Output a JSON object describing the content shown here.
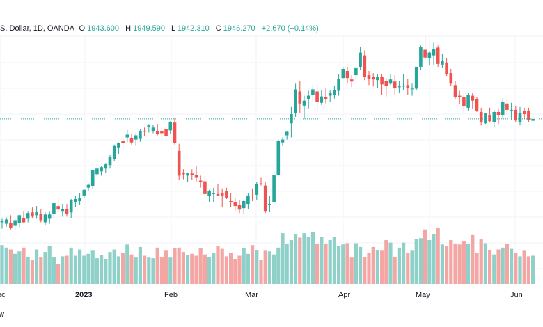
{
  "chart_data": {
    "type": "candlestick",
    "legend": {
      "symbol": ".S. Dollar, 1D, OANDA",
      "o_label": "O",
      "o_value": "1943.600",
      "h_label": "H",
      "h_value": "1949.590",
      "l_label": "L",
      "l_value": "1942.310",
      "c_label": "C",
      "c_value": "1946.270",
      "change": "+2.670 (+0.14%)"
    },
    "x_ticks": [
      "ec",
      "2023",
      "Feb",
      "Mar",
      "Apr",
      "May",
      "Jun"
    ],
    "footer_text": "w",
    "last_close_level": 1946.27,
    "grid": true,
    "colors": {
      "up": "#26a69a",
      "down": "#ef5350",
      "up_volume": "#8fd1c9",
      "down_volume": "#f4a6a4",
      "legend_value": "#26a69a",
      "grid": "#f0f3fa"
    },
    "price_range": [
      1770,
      2075
    ],
    "candles": [
      [
        1800.0,
        1805.0,
        1791.0,
        1802.0
      ],
      [
        1798.0,
        1807.0,
        1794.0,
        1804.0
      ],
      [
        1799.0,
        1810.0,
        1790.0,
        1792.0
      ],
      [
        1795.0,
        1806.0,
        1790.0,
        1803.0
      ],
      [
        1799.0,
        1812.0,
        1793.0,
        1810.0
      ],
      [
        1806.0,
        1816.0,
        1799.0,
        1800.0
      ],
      [
        1805.0,
        1816.0,
        1800.0,
        1813.0
      ],
      [
        1814.0,
        1821.0,
        1806.0,
        1808.0
      ],
      [
        1810.0,
        1823.0,
        1805.0,
        1815.0
      ],
      [
        1812.0,
        1819.0,
        1800.0,
        1803.0
      ],
      [
        1800.0,
        1814.0,
        1796.0,
        1811.0
      ],
      [
        1805.0,
        1816.0,
        1798.0,
        1811.0
      ],
      [
        1812.0,
        1828.0,
        1806.0,
        1827.0
      ],
      [
        1823.0,
        1834.0,
        1814.0,
        1818.0
      ],
      [
        1816.0,
        1826.0,
        1808.0,
        1819.0
      ],
      [
        1819.0,
        1826.0,
        1808.0,
        1812.0
      ],
      [
        1814.0,
        1833.0,
        1806.0,
        1832.0
      ],
      [
        1828.0,
        1837.0,
        1822.0,
        1833.0
      ],
      [
        1830.0,
        1841.0,
        1825.0,
        1834.0
      ],
      [
        1838.0,
        1847.0,
        1835.0,
        1846.0
      ],
      [
        1849.0,
        1855.0,
        1844.0,
        1853.0
      ],
      [
        1851.0,
        1874.0,
        1847.0,
        1874.0
      ],
      [
        1868.0,
        1879.0,
        1864.0,
        1876.0
      ],
      [
        1872.0,
        1880.0,
        1866.0,
        1878.0
      ],
      [
        1876.0,
        1883.0,
        1870.0,
        1882.0
      ],
      [
        1881.0,
        1895.0,
        1876.0,
        1892.0
      ],
      [
        1890.0,
        1910.0,
        1886.0,
        1908.0
      ],
      [
        1905.0,
        1913.0,
        1896.0,
        1912.0
      ],
      [
        1915.0,
        1921.0,
        1902.0,
        1912.0
      ],
      [
        1920.0,
        1931.0,
        1913.0,
        1924.0
      ],
      [
        1919.0,
        1925.0,
        1910.0,
        1913.0
      ],
      [
        1917.0,
        1926.0,
        1908.0,
        1923.0
      ],
      [
        1918.0,
        1932.0,
        1914.0,
        1929.0
      ],
      [
        1929.0,
        1934.0,
        1922.0,
        1928.0
      ],
      [
        1935.0,
        1939.0,
        1927.0,
        1937.0
      ],
      [
        1929.0,
        1938.0,
        1926.0,
        1934.0
      ],
      [
        1929.0,
        1939.0,
        1923.0,
        1925.0
      ],
      [
        1929.0,
        1934.0,
        1920.0,
        1926.0
      ],
      [
        1932.0,
        1935.0,
        1917.0,
        1922.0
      ],
      [
        1930.0,
        1943.0,
        1925.0,
        1942.0
      ],
      [
        1941.0,
        1948.0,
        1910.0,
        1912.0
      ],
      [
        1901.0,
        1911.0,
        1860.0,
        1866.0
      ],
      [
        1870.0,
        1875.0,
        1861.0,
        1868.0
      ],
      [
        1866.0,
        1870.0,
        1857.0,
        1870.0
      ],
      [
        1869.0,
        1875.0,
        1860.0,
        1867.0
      ],
      [
        1867.0,
        1880.0,
        1857.0,
        1863.0
      ],
      [
        1859.0,
        1866.0,
        1849.0,
        1857.0
      ],
      [
        1858.0,
        1865.0,
        1836.0,
        1840.0
      ],
      [
        1837.0,
        1846.0,
        1829.0,
        1844.0
      ],
      [
        1840.0,
        1849.0,
        1829.0,
        1841.0
      ],
      [
        1840.0,
        1854.0,
        1837.0,
        1838.0
      ],
      [
        1841.0,
        1848.0,
        1821.0,
        1838.0
      ],
      [
        1844.0,
        1849.0,
        1833.0,
        1835.0
      ],
      [
        1830.0,
        1841.0,
        1822.0,
        1829.0
      ],
      [
        1829.0,
        1834.0,
        1817.0,
        1823.0
      ],
      [
        1825.0,
        1831.0,
        1813.0,
        1818.0
      ],
      [
        1820.0,
        1832.0,
        1812.0,
        1830.0
      ],
      [
        1826.0,
        1841.0,
        1819.0,
        1838.0
      ],
      [
        1838.0,
        1848.0,
        1830.0,
        1837.0
      ],
      [
        1839.0,
        1857.0,
        1832.0,
        1854.0
      ],
      [
        1855.0,
        1863.0,
        1852.0,
        1854.0
      ],
      [
        1852.0,
        1857.0,
        1813.0,
        1816.0
      ],
      [
        1826.0,
        1837.0,
        1815.0,
        1826.0
      ],
      [
        1829.0,
        1872.0,
        1828.0,
        1867.0
      ],
      [
        1867.0,
        1917.0,
        1866.0,
        1915.0
      ],
      [
        1913.0,
        1920.0,
        1908.0,
        1917.0
      ],
      [
        1923.0,
        1929.0,
        1917.0,
        1928.0
      ],
      [
        1940.0,
        1963.0,
        1920.0,
        1953.0
      ],
      [
        1955.0,
        1996.0,
        1949.0,
        1988.0
      ],
      [
        1985.0,
        2000.0,
        1954.0,
        1968.0
      ],
      [
        1965.0,
        1979.0,
        1946.0,
        1972.0
      ],
      [
        1974.0,
        1986.0,
        1961.0,
        1979.0
      ],
      [
        1980.0,
        1995.0,
        1971.0,
        1988.0
      ],
      [
        1985.0,
        1992.0,
        1958.0,
        1970.0
      ],
      [
        1969.0,
        1987.0,
        1966.0,
        1978.0
      ],
      [
        1977.0,
        1989.0,
        1968.0,
        1974.0
      ],
      [
        1979.0,
        1987.0,
        1970.0,
        1983.0
      ],
      [
        1980.0,
        1993.0,
        1975.0,
        1987.0
      ],
      [
        1986.0,
        2009.0,
        1979.0,
        2003.0
      ],
      [
        2004.0,
        2019.0,
        2003.0,
        2017.0
      ],
      [
        2014.0,
        2020.0,
        1996.0,
        2004.0
      ],
      [
        2002.0,
        2008.0,
        1991.0,
        1999.0
      ],
      [
        2008.0,
        2021.0,
        2001.0,
        2018.0
      ],
      [
        2019.0,
        2048.0,
        2016.0,
        2040.0
      ],
      [
        2036.0,
        2043.0,
        2001.0,
        2006.0
      ],
      [
        2008.0,
        2014.0,
        1994.0,
        2003.0
      ],
      [
        2006.0,
        2011.0,
        1992.0,
        2002.0
      ],
      [
        2001.0,
        2010.0,
        1990.0,
        2006.0
      ],
      [
        2006.0,
        2010.0,
        1980.0,
        1995.0
      ],
      [
        2000.0,
        2004.0,
        1978.0,
        1993.0
      ],
      [
        1996.0,
        2009.0,
        1994.0,
        2002.0
      ],
      [
        1999.0,
        2008.0,
        1981.0,
        1990.0
      ],
      [
        1991.0,
        2000.0,
        1983.0,
        1993.0
      ],
      [
        1992.0,
        2009.0,
        1987.0,
        1993.0
      ],
      [
        1994.0,
        2003.0,
        1980.0,
        1990.0
      ],
      [
        1988.0,
        1996.0,
        1979.0,
        1989.0
      ],
      [
        1989.0,
        2020.0,
        1987.0,
        2019.0
      ],
      [
        2020.0,
        2050.0,
        2015.0,
        2048.0
      ],
      [
        2044.0,
        2065.0,
        2031.0,
        2033.0
      ],
      [
        2032.0,
        2041.0,
        2022.0,
        2040.0
      ],
      [
        2036.0,
        2054.0,
        2023.0,
        2045.0
      ],
      [
        2047.0,
        2050.0,
        2019.0,
        2024.0
      ],
      [
        2023.0,
        2038.0,
        2018.0,
        2028.0
      ],
      [
        2026.0,
        2032.0,
        2007.0,
        2009.0
      ],
      [
        2011.0,
        2017.0,
        1993.0,
        1996.0
      ],
      [
        1994.0,
        2000.0,
        1974.0,
        1977.0
      ],
      [
        1979.0,
        1986.0,
        1967.0,
        1977.0
      ],
      [
        1977.0,
        1982.0,
        1955.0,
        1964.0
      ],
      [
        1962.0,
        1983.0,
        1958.0,
        1980.0
      ],
      [
        1979.0,
        1983.0,
        1961.0,
        1972.0
      ],
      [
        1974.0,
        1977.0,
        1956.0,
        1958.0
      ],
      [
        1956.0,
        1962.0,
        1937.0,
        1942.0
      ],
      [
        1940.0,
        1955.0,
        1939.0,
        1954.0
      ],
      [
        1951.0,
        1962.0,
        1941.0,
        1943.0
      ],
      [
        1942.0,
        1959.0,
        1935.0,
        1956.0
      ],
      [
        1956.0,
        1961.0,
        1939.0,
        1951.0
      ],
      [
        1951.0,
        1975.0,
        1946.0,
        1970.0
      ],
      [
        1968.0,
        1981.0,
        1953.0,
        1959.0
      ],
      [
        1958.0,
        1969.0,
        1945.0,
        1959.0
      ],
      [
        1959.0,
        1965.0,
        1942.0,
        1944.0
      ],
      [
        1942.0,
        1963.0,
        1937.0,
        1955.0
      ],
      [
        1957.0,
        1962.0,
        1946.0,
        1953.0
      ],
      [
        1958.0,
        1962.0,
        1942.0,
        1945.0
      ],
      [
        1943.6,
        1949.59,
        1942.31,
        1946.27
      ]
    ],
    "volume": [
      62.0,
      58.0,
      55.0,
      48.0,
      52.0,
      58.0,
      43.0,
      38.0,
      55.0,
      43.0,
      51.0,
      60.0,
      43.0,
      32.0,
      44.0,
      45.0,
      58.0,
      45.0,
      55.0,
      45.0,
      48.0,
      53.0,
      41.0,
      46.0,
      40.0,
      51.0,
      55.0,
      44.0,
      50.0,
      63.0,
      47.0,
      42.0,
      59.0,
      45.0,
      42.0,
      41.0,
      58.0,
      43.0,
      53.0,
      42.0,
      57.0,
      58.0,
      51.0,
      46.0,
      48.0,
      45.0,
      57.0,
      47.0,
      43.0,
      50.0,
      61.0,
      56.0,
      44.0,
      49.0,
      40.0,
      45.0,
      57.0,
      48.0,
      62.0,
      54.0,
      38.0,
      53.0,
      52.0,
      47.0,
      58.0,
      81.0,
      64.0,
      70.0,
      79.0,
      74.0,
      81.0,
      75.0,
      83.0,
      64.0,
      75.0,
      64.0,
      70.0,
      75.0,
      60.0,
      63.0,
      65.0,
      42.0,
      65.0,
      59.0,
      43.0,
      50.0,
      59.0,
      54.0,
      53.0,
      70.0,
      66.0,
      43.0,
      58.0,
      66.0,
      49.0,
      53.0,
      72.0,
      73.0,
      87.0,
      70.0,
      79.0,
      89.0,
      63.0,
      60.0,
      70.0,
      64.0,
      63.0,
      68.0,
      64.0,
      78.0,
      49.0,
      71.0,
      65.0,
      54.0,
      47.0,
      55.0,
      58.0,
      64.0,
      56.0,
      50.0,
      44.0,
      53.0,
      44.0,
      45.0
    ]
  }
}
